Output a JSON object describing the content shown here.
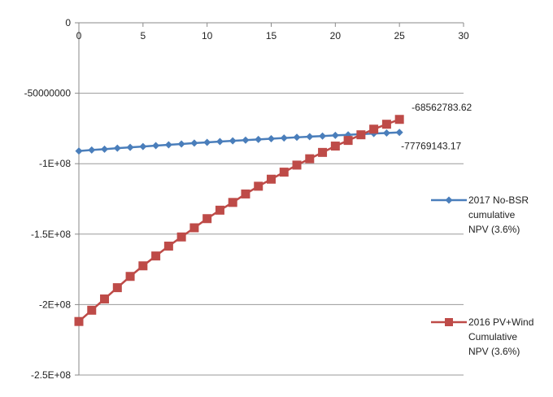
{
  "chart_data": {
    "type": "line",
    "title": "",
    "xlabel": "",
    "ylabel": "",
    "xlim": [
      0,
      30
    ],
    "ylim": [
      -250000000,
      0
    ],
    "x_ticks": [
      0,
      5,
      10,
      15,
      20,
      25,
      30
    ],
    "y_ticks": [
      0,
      -50000000,
      -100000000,
      -150000000,
      -200000000,
      -250000000
    ],
    "y_tick_labels": [
      "0",
      "-50000000",
      "-1E+08",
      "-1.5E+08",
      "-2E+08",
      "-2.5E+08"
    ],
    "grid": "horizontal",
    "legend_position": "right",
    "series": [
      {
        "name": "2017 No-BSR cumulative NPV (3.6%)",
        "legend_lines": [
          "2017 No-BSR",
          "cumulative",
          "NPV (3.6%)"
        ],
        "color": "#4a7ebb",
        "marker": "diamond",
        "x": [
          0,
          1,
          2,
          3,
          4,
          5,
          6,
          7,
          8,
          9,
          10,
          11,
          12,
          13,
          14,
          15,
          16,
          17,
          18,
          19,
          20,
          21,
          22,
          23,
          24,
          25
        ],
        "values": [
          -91000000,
          -90300000,
          -89700000,
          -89000000,
          -88400000,
          -87800000,
          -87200000,
          -86600000,
          -86000000,
          -85400000,
          -84900000,
          -84300000,
          -83800000,
          -83300000,
          -82800000,
          -82300000,
          -81800000,
          -81300000,
          -80800000,
          -80400000,
          -79900000,
          -79500000,
          -79000000,
          -78600000,
          -78200000,
          -77769143.17
        ],
        "end_label": "-77769143.17"
      },
      {
        "name": "2016 PV+Wind Cumulative NPV (3.6%)",
        "legend_lines": [
          "2016 PV+Wind",
          "Cumulative",
          "NPV (3.6%)"
        ],
        "color": "#be4b48",
        "marker": "square",
        "x": [
          0,
          1,
          2,
          3,
          4,
          5,
          6,
          7,
          8,
          9,
          10,
          11,
          12,
          13,
          14,
          15,
          16,
          17,
          18,
          19,
          20,
          21,
          22,
          23,
          24,
          25
        ],
        "values": [
          -212000000,
          -204000000,
          -196000000,
          -188000000,
          -180000000,
          -172500000,
          -165500000,
          -158500000,
          -152000000,
          -145500000,
          -139000000,
          -133000000,
          -127500000,
          -121500000,
          -116000000,
          -111000000,
          -106000000,
          -101000000,
          -96500000,
          -92000000,
          -87500000,
          -83500000,
          -79500000,
          -75500000,
          -72000000,
          -68562783.62
        ],
        "end_label": "-68562783.62"
      }
    ]
  }
}
